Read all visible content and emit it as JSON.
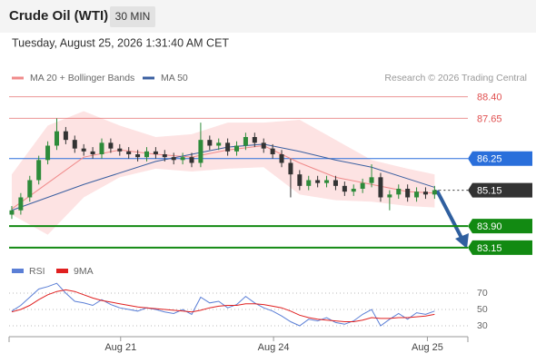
{
  "header": {
    "instrument": "Crude Oil (WTI)",
    "interval": "30 MIN",
    "timestamp": "Tuesday, August 25, 2026 1:31:40 AM CET",
    "credit": "Research © 2026 Trading Central"
  },
  "chart_data": [
    {
      "type": "candlestick",
      "xlim": [
        -0.3,
        50.7
      ],
      "ylim": [
        82.8,
        88.8
      ],
      "xticks": [
        {
          "value": 12.1,
          "label": "Aug 21"
        },
        {
          "value": 29.1,
          "label": "Aug 24"
        },
        {
          "value": 46.2,
          "label": "Aug 25"
        }
      ],
      "x": [
        0,
        1,
        2,
        3,
        4,
        5,
        6,
        7,
        8,
        9,
        10,
        11,
        12,
        13,
        14,
        15,
        16,
        17,
        18,
        19,
        20,
        21,
        22,
        23,
        24,
        25,
        26,
        27,
        28,
        29,
        30,
        31,
        32,
        33,
        34,
        35,
        36,
        37,
        38,
        39,
        40,
        41,
        42,
        43,
        44,
        45,
        46,
        47
      ],
      "open": [
        84.3,
        84.45,
        84.9,
        85.5,
        86.2,
        86.7,
        87.2,
        86.9,
        86.6,
        86.5,
        86.4,
        86.8,
        86.6,
        86.5,
        86.4,
        86.3,
        86.5,
        86.4,
        86.3,
        86.2,
        86.3,
        86.1,
        86.9,
        86.7,
        86.8,
        86.5,
        86.7,
        87.0,
        86.8,
        86.6,
        86.4,
        86.1,
        85.7,
        85.3,
        85.5,
        85.4,
        85.5,
        85.3,
        85.1,
        85.2,
        85.4,
        85.6,
        84.9,
        85.0,
        85.2,
        84.9,
        85.1,
        85.0
      ],
      "high": [
        84.6,
        85.05,
        85.65,
        86.35,
        86.85,
        87.65,
        87.35,
        87.05,
        86.75,
        86.65,
        86.95,
        86.95,
        86.75,
        86.65,
        86.55,
        86.65,
        86.65,
        86.55,
        86.45,
        86.45,
        86.45,
        87.5,
        87.05,
        86.95,
        86.95,
        86.85,
        87.15,
        87.15,
        86.95,
        86.75,
        86.55,
        86.25,
        85.85,
        85.65,
        85.65,
        85.65,
        85.65,
        85.45,
        85.35,
        85.55,
        86.05,
        85.75,
        85.15,
        85.35,
        85.35,
        85.25,
        85.25,
        85.3
      ],
      "low": [
        84.15,
        84.3,
        84.75,
        85.35,
        86.05,
        86.55,
        86.75,
        86.45,
        86.35,
        86.25,
        86.25,
        86.45,
        86.35,
        86.25,
        86.15,
        86.15,
        86.25,
        86.15,
        86.05,
        86.05,
        85.95,
        85.95,
        86.55,
        86.55,
        86.35,
        86.35,
        86.55,
        86.65,
        86.45,
        86.25,
        85.95,
        84.9,
        85.15,
        85.15,
        85.25,
        85.25,
        85.15,
        84.95,
        84.95,
        85.05,
        85.25,
        84.75,
        84.45,
        84.85,
        84.75,
        84.75,
        84.85,
        84.85
      ],
      "close": [
        84.45,
        84.9,
        85.5,
        86.2,
        86.7,
        87.2,
        86.9,
        86.6,
        86.5,
        86.4,
        86.8,
        86.6,
        86.5,
        86.4,
        86.3,
        86.5,
        86.4,
        86.3,
        86.2,
        86.3,
        86.1,
        86.9,
        86.7,
        86.8,
        86.5,
        86.7,
        87.0,
        86.8,
        86.6,
        86.4,
        86.1,
        85.7,
        85.3,
        85.5,
        85.4,
        85.5,
        85.3,
        85.1,
        85.2,
        85.4,
        85.6,
        84.9,
        85.0,
        85.2,
        84.9,
        85.1,
        85.0,
        85.15
      ],
      "up_color": "#2e8b3a",
      "down_color": "#333333",
      "series": [
        {
          "name": "MA 20 + Bollinger Bands",
          "color": "#f08a8a",
          "band_color": "#fde3e3",
          "x": [
            0,
            4,
            8,
            12,
            16,
            20,
            24,
            28,
            32,
            36,
            40,
            44,
            47
          ],
          "values": [
            84.5,
            85.4,
            86.3,
            86.55,
            86.4,
            86.3,
            86.55,
            86.7,
            86.1,
            85.6,
            85.35,
            85.1,
            85.05
          ],
          "upper": [
            85.7,
            87.4,
            87.9,
            87.4,
            87.0,
            87.1,
            87.5,
            87.5,
            87.6,
            86.9,
            86.2,
            85.9,
            85.7
          ],
          "lower": [
            84.3,
            83.6,
            84.9,
            85.6,
            85.9,
            85.8,
            85.9,
            85.95,
            85.0,
            84.8,
            84.75,
            84.6,
            84.55
          ]
        },
        {
          "name": "MA 50",
          "color": "#3a5fa0",
          "x": [
            0,
            4,
            8,
            12,
            16,
            20,
            24,
            28,
            32,
            36,
            40,
            44,
            47
          ],
          "values": [
            84.45,
            84.9,
            85.35,
            85.75,
            86.15,
            86.4,
            86.65,
            86.75,
            86.5,
            86.2,
            85.95,
            85.55,
            85.25
          ]
        }
      ],
      "levels": [
        {
          "value": 88.4,
          "label": "88.40",
          "color": "#e05050",
          "box": false,
          "dash": false
        },
        {
          "value": 87.65,
          "label": "87.65",
          "color": "#e05050",
          "box": false,
          "dash": false
        },
        {
          "value": 86.25,
          "label": "86.25",
          "color": "#2a6fdb",
          "box": true,
          "dash": false
        },
        {
          "value": 85.15,
          "label": "85.15",
          "color": "#333333",
          "box": true,
          "dash": true
        },
        {
          "value": 83.9,
          "label": "83.90",
          "color": "#128a12",
          "box": true,
          "dash": false
        },
        {
          "value": 83.15,
          "label": "83.15",
          "color": "#128a12",
          "box": true,
          "dash": false
        }
      ]
    },
    {
      "type": "line",
      "xlim": [
        -0.3,
        50.7
      ],
      "ylim": [
        20,
        85
      ],
      "yticks": [
        30,
        50,
        70
      ],
      "grid": true,
      "x": [
        0,
        1,
        2,
        3,
        4,
        5,
        6,
        7,
        8,
        9,
        10,
        11,
        12,
        13,
        14,
        15,
        16,
        17,
        18,
        19,
        20,
        21,
        22,
        23,
        24,
        25,
        26,
        27,
        28,
        29,
        30,
        31,
        32,
        33,
        34,
        35,
        36,
        37,
        38,
        39,
        40,
        41,
        42,
        43,
        44,
        45,
        46,
        47
      ],
      "series": [
        {
          "name": "RSI",
          "color": "#5b7fd6",
          "values": [
            48,
            55,
            65,
            75,
            78,
            82,
            70,
            60,
            58,
            55,
            62,
            56,
            52,
            50,
            48,
            52,
            50,
            47,
            45,
            50,
            44,
            65,
            58,
            60,
            52,
            56,
            66,
            58,
            52,
            48,
            42,
            35,
            30,
            38,
            36,
            40,
            34,
            32,
            36,
            44,
            50,
            30,
            38,
            45,
            38,
            46,
            44,
            48
          ]
        },
        {
          "name": "9MA",
          "color": "#e02020",
          "values": [
            47,
            50,
            55,
            62,
            68,
            72,
            74,
            72,
            68,
            64,
            61,
            59,
            57,
            55,
            53,
            52,
            51,
            50,
            49,
            48,
            47,
            49,
            52,
            54,
            55,
            55,
            57,
            57,
            56,
            54,
            52,
            48,
            43,
            40,
            38,
            37,
            36,
            35,
            35,
            37,
            40,
            39,
            39,
            40,
            40,
            41,
            42,
            44
          ]
        }
      ]
    }
  ]
}
